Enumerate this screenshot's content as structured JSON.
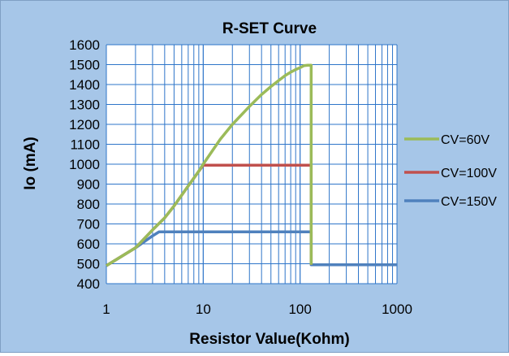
{
  "chart_data": {
    "type": "line",
    "title": "R-SET Curve",
    "xlabel": "Resistor Value(Kohm)",
    "ylabel": "Io (mA)",
    "x_scale": "log",
    "xlim": [
      1,
      1000
    ],
    "ylim": [
      400,
      1600
    ],
    "x_ticks": [
      "1",
      "10",
      "100",
      "1000"
    ],
    "y_ticks": [
      "400",
      "500",
      "600",
      "700",
      "800",
      "900",
      "1000",
      "1100",
      "1200",
      "1300",
      "1400",
      "1500",
      "1600"
    ],
    "grid": true,
    "legend_position": "right",
    "series": [
      {
        "name": "CV=60V",
        "color": "#9bbb59",
        "x": [
          1,
          2,
          3,
          4,
          5,
          6,
          7,
          8,
          9,
          10,
          15,
          20,
          30,
          40,
          50,
          60,
          70,
          80,
          90,
          100,
          110,
          120,
          130,
          130
        ],
        "y": [
          490,
          580,
          670,
          730,
          790,
          845,
          890,
          930,
          965,
          1000,
          1125,
          1200,
          1290,
          1350,
          1390,
          1420,
          1445,
          1462,
          1475,
          1485,
          1495,
          1497,
          1497,
          495
        ]
      },
      {
        "name": "CV=100V",
        "color": "#c0504d",
        "x": [
          1,
          2,
          3,
          4,
          5,
          6,
          7,
          8,
          9,
          10,
          50,
          100,
          130,
          130
        ],
        "y": [
          490,
          580,
          670,
          730,
          790,
          845,
          890,
          930,
          965,
          995,
          995,
          995,
          995,
          495
        ]
      },
      {
        "name": "CV=150V",
        "color": "#4f81bd",
        "x": [
          1,
          2,
          3,
          3.5,
          10,
          50,
          100,
          130,
          130,
          200,
          500,
          1000
        ],
        "y": [
          490,
          580,
          640,
          660,
          660,
          660,
          660,
          660,
          495,
          495,
          495,
          495
        ]
      }
    ]
  }
}
